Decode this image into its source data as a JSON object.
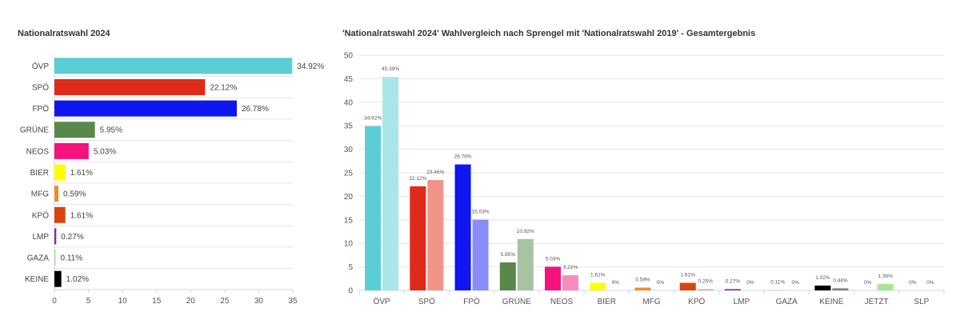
{
  "chart_data": [
    {
      "type": "bar",
      "orientation": "horizontal",
      "title": "Nationalratswahl 2024",
      "categories": [
        "ÖVP",
        "SPÖ",
        "FPÖ",
        "GRÜNE",
        "NEOS",
        "BIER",
        "MFG",
        "KPÖ",
        "LMP",
        "GAZA",
        "KEINE"
      ],
      "values": [
        34.92,
        22.12,
        26.78,
        5.95,
        5.03,
        1.61,
        0.59,
        1.61,
        0.27,
        0.11,
        1.02
      ],
      "value_labels": [
        "34.92%",
        "22.12%",
        "26.78%",
        "5.95%",
        "5.03%",
        "1.61%",
        "0.59%",
        "1.61%",
        "0.27%",
        "0.11%",
        "1.02%"
      ],
      "colors": [
        "#5bcdd6",
        "#e02a1a",
        "#0f16ef",
        "#58884a",
        "#f6127c",
        "#ffff00",
        "#f28c28",
        "#d9440e",
        "#7b2fa3",
        "#a6e88f",
        "#000000"
      ],
      "xlim": [
        0,
        35
      ],
      "xticks": [
        "0",
        "5",
        "10",
        "15",
        "20",
        "25",
        "30",
        "35"
      ],
      "grid": false,
      "legend": "none"
    },
    {
      "type": "bar",
      "title": "'Nationalratswahl 2024' Wahlvergleich nach Sprengel mit 'Nationalratswahl 2019' - Gesamtergebnis",
      "categories": [
        "ÖVP",
        "SPÖ",
        "FPÖ",
        "GRÜNE",
        "NEOS",
        "BIER",
        "MFG",
        "KPÖ",
        "LMP",
        "GAZA",
        "KEINE",
        "JETZT",
        "SLP"
      ],
      "series": [
        {
          "values": [
            34.92,
            22.12,
            26.78,
            5.95,
            5.03,
            1.61,
            0.59,
            1.61,
            0.27,
            0.11,
            1.02,
            0,
            0
          ],
          "labels": [
            "34.92%",
            "22.12%",
            "26.78%",
            "5.95%",
            "5.03%",
            "1.61%",
            "0.59%",
            "1.61%",
            "0.27%",
            "0.11%",
            "1.02%",
            "0%",
            "0%"
          ],
          "colors": [
            "#5bcdd6",
            "#e02a1a",
            "#0f16ef",
            "#58884a",
            "#f6127c",
            "#ffff00",
            "#f28c28",
            "#d9440e",
            "#7b2fa3",
            "#a6e88f",
            "#000000",
            "#a6e88f",
            "#cccccc"
          ]
        },
        {
          "values": [
            45.39,
            23.46,
            15.03,
            10.92,
            3.22,
            0,
            0,
            0.25,
            0,
            0,
            0.44,
            1.36,
            0
          ],
          "labels": [
            "45.39%",
            "23.46%",
            "15.03%",
            "10.92%",
            "3.22%",
            "0%",
            "0%",
            "0.25%",
            "0%",
            "0%",
            "0.44%",
            "1.36%",
            "0%"
          ],
          "colors": [
            "#a9e6ea",
            "#ef9489",
            "#8a8df8",
            "#a9c3a2",
            "#f98bbd",
            "#ffff7f",
            "#f8c594",
            "#ec9f85",
            "#bd96d1",
            "#d2f3c7",
            "#7f7f7f",
            "#a6e88f",
            "#cccccc"
          ]
        }
      ],
      "ylim": [
        0,
        50
      ],
      "yticks": [
        "0",
        "5",
        "10",
        "15",
        "20",
        "25",
        "30",
        "35",
        "40",
        "45",
        "50"
      ],
      "grid": true,
      "legend": "none"
    }
  ]
}
